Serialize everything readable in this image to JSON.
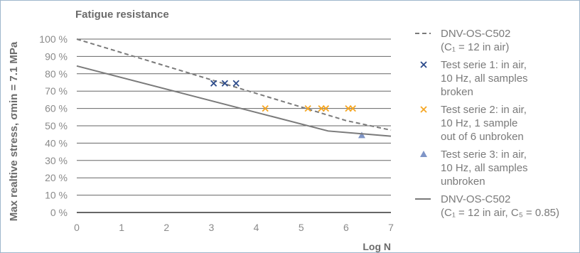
{
  "chart_data": {
    "type": "line",
    "title": "Fatigue resistance",
    "xlabel": "Log N",
    "ylabel": "Max realtive stress, σmin = 7.1 MPa",
    "xlim": [
      0,
      7
    ],
    "ylim": [
      0,
      100
    ],
    "x_ticks": [
      "0",
      "1",
      "2",
      "3",
      "4",
      "5",
      "6",
      "7"
    ],
    "y_ticks": [
      "0 %",
      "10 %",
      "20 %",
      "30 %",
      "40 %",
      "50 %",
      "60 %",
      "70 %",
      "80 %",
      "90 %",
      "100 %"
    ],
    "grid": "horizontal",
    "legend_position": "right",
    "series": [
      {
        "name": "DNV-OS-C502 (C1 = 12 in air)",
        "legend_lines": [
          "DNV-OS-C502",
          "(C₁ = 12 in air)"
        ],
        "kind": "line",
        "style": "dashed",
        "color": "#7a7a7a",
        "points": [
          [
            0,
            100
          ],
          [
            6,
            53
          ],
          [
            7,
            47.5
          ]
        ]
      },
      {
        "name": "Test serie 1: in air, 10 Hz, all samples broken",
        "legend_lines": [
          "Test serie 1: in air,",
          "10 Hz, all samples",
          "broken"
        ],
        "kind": "scatter",
        "marker": "x",
        "color": "#2b4a8a",
        "points": [
          [
            3.05,
            74.5
          ],
          [
            3.3,
            74.5
          ],
          [
            3.55,
            74.5
          ]
        ]
      },
      {
        "name": "Test serie 2: in air, 10 Hz, 1 sample out of 6 unbroken",
        "legend_lines": [
          "Test serie 2: in air,",
          "10 Hz, 1 sample",
          "out of 6 unbroken"
        ],
        "kind": "scatter",
        "marker": "x",
        "color": "#f5a623",
        "points": [
          [
            4.2,
            60
          ],
          [
            5.15,
            60
          ],
          [
            5.45,
            60
          ],
          [
            5.55,
            60
          ],
          [
            6.05,
            60
          ],
          [
            6.15,
            60
          ]
        ]
      },
      {
        "name": "Test serie 3: in air, 10 Hz, all samples unbroken",
        "legend_lines": [
          "Test serie 3: in air,",
          "10 Hz, all samples",
          "unbroken"
        ],
        "kind": "scatter",
        "marker": "triangle",
        "color": "#7f95c7",
        "points": [
          [
            6.35,
            44.5
          ]
        ]
      },
      {
        "name": "DNV-OS-C502 (C1 = 12 in air, C5 = 0.85)",
        "legend_lines": [
          "DNV-OS-C502",
          "(C₁ = 12 in air, C₅ = 0.85)"
        ],
        "kind": "line",
        "style": "solid",
        "color": "#7a7a7a",
        "points": [
          [
            0,
            84.5
          ],
          [
            5.6,
            47
          ],
          [
            7,
            44
          ]
        ]
      }
    ]
  },
  "colors": {
    "axis": "#666666",
    "grid": "#666666",
    "border": "#9fb6cc",
    "text": "#6b6b6b"
  }
}
